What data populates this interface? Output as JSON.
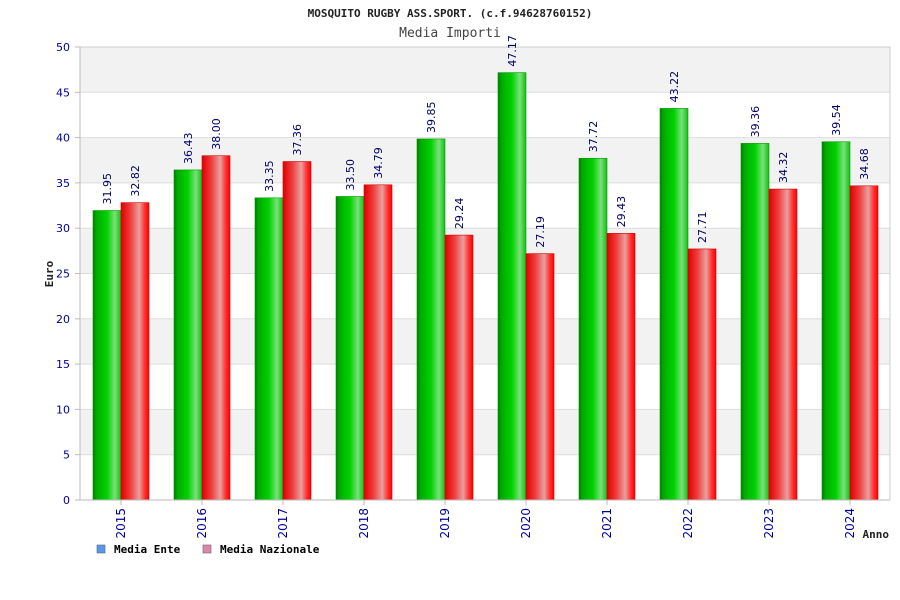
{
  "chart_data": {
    "type": "bar",
    "title": "MOSQUITO RUGBY ASS.SPORT. (c.f.94628760152)",
    "subtitle": "Media Importi",
    "xlabel": "Anno",
    "ylabel": "Euro",
    "ylim": [
      0,
      50
    ],
    "yticks": [
      "0",
      "5",
      "10",
      "15",
      "20",
      "25",
      "30",
      "35",
      "40",
      "45",
      "50"
    ],
    "grid": true,
    "legend_position": "bottom-left",
    "categories": [
      "2015",
      "2016",
      "2017",
      "2018",
      "2019",
      "2020",
      "2021",
      "2022",
      "2023",
      "2024"
    ],
    "series": [
      {
        "name": "Media Ente",
        "color": "#00cc00",
        "legend_color": "#5599ee",
        "values": [
          31.95,
          36.43,
          33.35,
          33.5,
          39.85,
          47.17,
          37.72,
          43.22,
          39.36,
          39.54
        ],
        "labels": [
          "31.95",
          "36.43",
          "33.35",
          "33.50",
          "39.85",
          "47.17",
          "37.72",
          "43.22",
          "39.36",
          "39.54"
        ]
      },
      {
        "name": "Media Nazionale",
        "color": "#ff0000",
        "legend_color": "#dd88aa",
        "values": [
          32.82,
          38.0,
          37.36,
          34.79,
          29.24,
          27.19,
          29.43,
          27.71,
          34.32,
          34.68
        ],
        "labels": [
          "32.82",
          "38.00",
          "37.36",
          "34.79",
          "29.24",
          "27.19",
          "29.43",
          "27.71",
          "34.32",
          "34.68"
        ]
      }
    ]
  }
}
